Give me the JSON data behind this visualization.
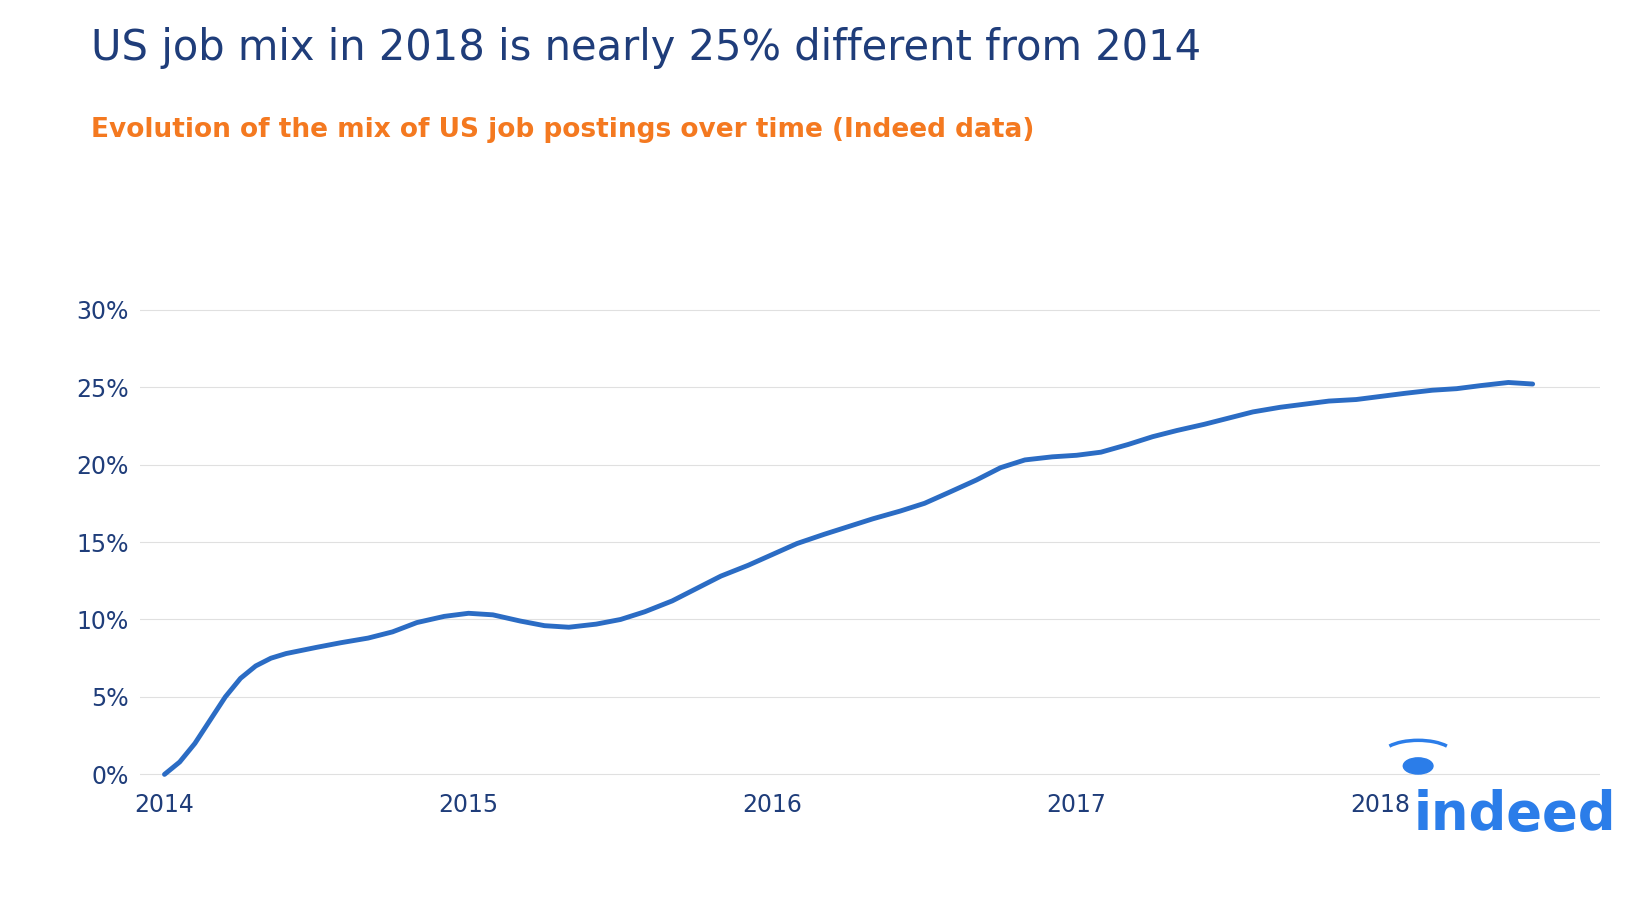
{
  "title": "US job mix in 2018 is nearly 25% different from 2014",
  "subtitle": "Evolution of the mix of US job postings over time (Indeed data)",
  "title_color": "#1f3d7a",
  "subtitle_color": "#f47920",
  "line_color": "#2b6cc4",
  "background_color": "#ffffff",
  "ytick_labels": [
    "0%",
    "5%",
    "10%",
    "15%",
    "20%",
    "25%",
    "30%"
  ],
  "ytick_values": [
    0,
    5,
    10,
    15,
    20,
    25,
    30
  ],
  "xtick_labels": [
    "2014",
    "2015",
    "2016",
    "2017",
    "2018"
  ],
  "xtick_values": [
    2014,
    2015,
    2016,
    2017,
    2018
  ],
  "ylim": [
    -0.5,
    32
  ],
  "xlim": [
    2013.92,
    2018.72
  ],
  "x_data": [
    2014.0,
    2014.05,
    2014.1,
    2014.15,
    2014.2,
    2014.25,
    2014.3,
    2014.35,
    2014.4,
    2014.45,
    2014.5,
    2014.58,
    2014.67,
    2014.75,
    2014.83,
    2014.92,
    2015.0,
    2015.08,
    2015.17,
    2015.25,
    2015.33,
    2015.42,
    2015.5,
    2015.58,
    2015.67,
    2015.75,
    2015.83,
    2015.92,
    2016.0,
    2016.08,
    2016.17,
    2016.25,
    2016.33,
    2016.42,
    2016.5,
    2016.58,
    2016.67,
    2016.75,
    2016.83,
    2016.92,
    2017.0,
    2017.08,
    2017.17,
    2017.25,
    2017.33,
    2017.42,
    2017.5,
    2017.58,
    2017.67,
    2017.75,
    2017.83,
    2017.92,
    2018.0,
    2018.08,
    2018.17,
    2018.25,
    2018.33,
    2018.42,
    2018.5
  ],
  "y_data": [
    0.0,
    0.8,
    2.0,
    3.5,
    5.0,
    6.2,
    7.0,
    7.5,
    7.8,
    8.0,
    8.2,
    8.5,
    8.8,
    9.2,
    9.8,
    10.2,
    10.4,
    10.3,
    9.9,
    9.6,
    9.5,
    9.7,
    10.0,
    10.5,
    11.2,
    12.0,
    12.8,
    13.5,
    14.2,
    14.9,
    15.5,
    16.0,
    16.5,
    17.0,
    17.5,
    18.2,
    19.0,
    19.8,
    20.3,
    20.5,
    20.6,
    20.8,
    21.3,
    21.8,
    22.2,
    22.6,
    23.0,
    23.4,
    23.7,
    23.9,
    24.1,
    24.2,
    24.4,
    24.6,
    24.8,
    24.9,
    25.1,
    25.3,
    25.2
  ],
  "indeed_color": "#2b7de9",
  "tick_color": "#1f3d7a",
  "grid_color": "#e0e0e0",
  "line_width": 3.5,
  "title_fontsize": 30,
  "subtitle_fontsize": 19,
  "tick_fontsize": 17
}
